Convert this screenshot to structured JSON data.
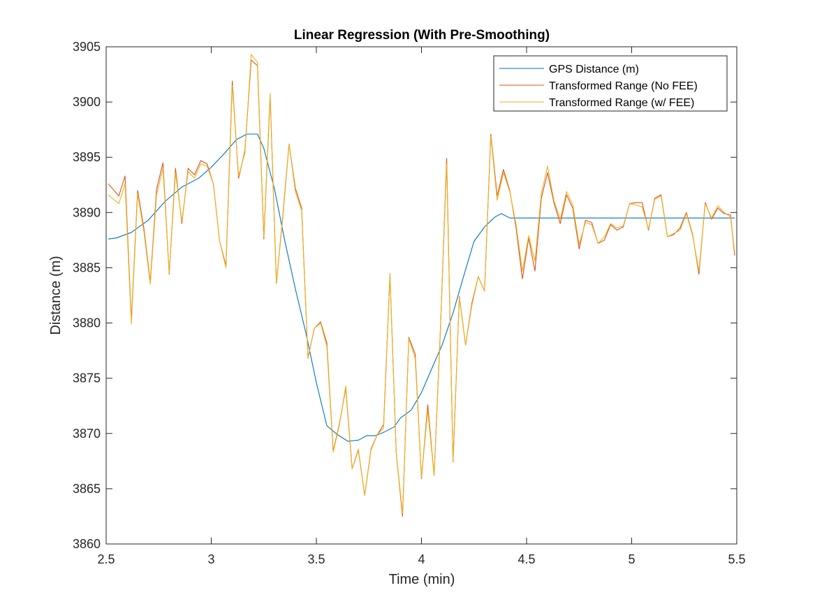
{
  "chart_data": {
    "type": "line",
    "title": "Linear Regression (With Pre-Smoothing)",
    "xlabel": "Time (min)",
    "ylabel": "Distance (m)",
    "xlim": [
      2.5,
      5.5
    ],
    "ylim": [
      3860,
      3905
    ],
    "xticks": [
      2.5,
      3,
      3.5,
      4,
      4.5,
      5,
      5.5
    ],
    "xtick_labels": [
      "2.5",
      "3",
      "3.5",
      "4",
      "4.5",
      "5",
      "5.5"
    ],
    "yticks": [
      3860,
      3865,
      3870,
      3875,
      3880,
      3885,
      3890,
      3895,
      3900,
      3905
    ],
    "ytick_labels": [
      "3860",
      "3865",
      "3870",
      "3875",
      "3880",
      "3885",
      "3890",
      "3895",
      "3900",
      "3905"
    ],
    "grid": false,
    "legend_position": "top-right",
    "series": [
      {
        "name": "GPS Distance (m)",
        "color": "#0072BD",
        "x": [
          2.51,
          2.55,
          2.62,
          2.7,
          2.78,
          2.86,
          2.94,
          3.0,
          3.06,
          3.12,
          3.17,
          3.22,
          3.25,
          3.3,
          3.35,
          3.4,
          3.45,
          3.5,
          3.55,
          3.6,
          3.65,
          3.7,
          3.74,
          3.78,
          3.82,
          3.87,
          3.9,
          3.95,
          4.0,
          4.05,
          4.1,
          4.15,
          4.2,
          4.25,
          4.3,
          4.35,
          4.38,
          4.42,
          4.45,
          4.5,
          5.0,
          5.49
        ],
        "y": [
          3887.6,
          3887.7,
          3888.2,
          3889.3,
          3891.0,
          3892.3,
          3893.1,
          3894.1,
          3895.3,
          3896.6,
          3897.1,
          3897.1,
          3895.8,
          3892.2,
          3887.4,
          3883.1,
          3879.1,
          3874.6,
          3870.7,
          3869.9,
          3869.3,
          3869.4,
          3869.8,
          3869.8,
          3870.1,
          3870.6,
          3871.4,
          3872.1,
          3873.7,
          3875.9,
          3878.1,
          3880.9,
          3884.2,
          3887.4,
          3888.7,
          3889.6,
          3889.9,
          3889.5,
          3889.5,
          3889.5,
          3889.5,
          3889.5
        ]
      },
      {
        "name": "Transformed Range (No FEE)",
        "color": "#D95319",
        "x": [
          2.51,
          2.56,
          2.59,
          2.62,
          2.65,
          2.68,
          2.71,
          2.74,
          2.77,
          2.8,
          2.83,
          2.86,
          2.89,
          2.92,
          2.95,
          2.98,
          3.01,
          3.04,
          3.07,
          3.1,
          3.13,
          3.16,
          3.19,
          3.22,
          3.25,
          3.28,
          3.31,
          3.34,
          3.37,
          3.4,
          3.43,
          3.46,
          3.49,
          3.52,
          3.55,
          3.58,
          3.61,
          3.64,
          3.67,
          3.7,
          3.73,
          3.76,
          3.79,
          3.82,
          3.85,
          3.88,
          3.91,
          3.94,
          3.97,
          4.0,
          4.03,
          4.06,
          4.09,
          4.12,
          4.15,
          4.18,
          4.21,
          4.24,
          4.27,
          4.3,
          4.33,
          4.36,
          4.39,
          4.42,
          4.45,
          4.48,
          4.51,
          4.54,
          4.57,
          4.6,
          4.63,
          4.66,
          4.69,
          4.72,
          4.75,
          4.78,
          4.81,
          4.84,
          4.87,
          4.9,
          4.93,
          4.96,
          4.99,
          5.02,
          5.05,
          5.08,
          5.11,
          5.14,
          5.17,
          5.2,
          5.23,
          5.26,
          5.29,
          5.32,
          5.35,
          5.38,
          5.41,
          5.44,
          5.47,
          5.49
        ],
        "y": [
          3892.6,
          3891.5,
          3893.3,
          3880.2,
          3892.0,
          3888.5,
          3883.7,
          3892.1,
          3894.5,
          3884.4,
          3894.0,
          3889.0,
          3894.0,
          3893.4,
          3894.7,
          3894.4,
          3892.6,
          3887.4,
          3885.2,
          3901.9,
          3893.1,
          3895.6,
          3903.8,
          3903.3,
          3887.6,
          3900.6,
          3883.6,
          3889.6,
          3896.2,
          3892.2,
          3890.4,
          3876.8,
          3879.5,
          3880.1,
          3878.2,
          3868.4,
          3870.9,
          3874.1,
          3866.8,
          3868.5,
          3864.4,
          3868.6,
          3869.9,
          3870.8,
          3884.3,
          3868.2,
          3862.5,
          3878.7,
          3877.2,
          3865.9,
          3872.6,
          3866.2,
          3879.3,
          3894.9,
          3867.4,
          3882.4,
          3878.0,
          3881.8,
          3884.2,
          3882.9,
          3897.1,
          3891.5,
          3893.9,
          3892.0,
          3888.6,
          3884.0,
          3887.7,
          3884.7,
          3891.3,
          3893.6,
          3890.9,
          3889.0,
          3891.6,
          3890.4,
          3886.7,
          3889.3,
          3889.1,
          3887.2,
          3887.5,
          3888.9,
          3888.4,
          3888.7,
          3890.8,
          3890.9,
          3890.9,
          3888.4,
          3891.3,
          3891.6,
          3887.8,
          3888.0,
          3888.6,
          3890.0,
          3888.0,
          3884.4,
          3890.9,
          3889.4,
          3890.4,
          3889.9,
          3889.8,
          3886.1
        ]
      },
      {
        "name": "Transformed Range (w/ FEE)",
        "color": "#EDB120",
        "x": [
          2.51,
          2.56,
          2.59,
          2.62,
          2.65,
          2.68,
          2.71,
          2.74,
          2.77,
          2.8,
          2.83,
          2.86,
          2.89,
          2.92,
          2.95,
          2.98,
          3.01,
          3.04,
          3.07,
          3.1,
          3.13,
          3.16,
          3.19,
          3.22,
          3.25,
          3.28,
          3.31,
          3.34,
          3.37,
          3.4,
          3.43,
          3.46,
          3.49,
          3.52,
          3.55,
          3.58,
          3.61,
          3.64,
          3.67,
          3.7,
          3.73,
          3.76,
          3.79,
          3.82,
          3.85,
          3.88,
          3.91,
          3.94,
          3.97,
          4.0,
          4.03,
          4.06,
          4.09,
          4.12,
          4.15,
          4.18,
          4.21,
          4.24,
          4.27,
          4.3,
          4.33,
          4.36,
          4.39,
          4.42,
          4.45,
          4.48,
          4.51,
          4.54,
          4.57,
          4.6,
          4.63,
          4.66,
          4.69,
          4.72,
          4.75,
          4.78,
          4.81,
          4.84,
          4.87,
          4.9,
          4.93,
          4.96,
          4.99,
          5.02,
          5.05,
          5.08,
          5.11,
          5.14,
          5.17,
          5.2,
          5.23,
          5.26,
          5.29,
          5.32,
          5.35,
          5.38,
          5.41,
          5.44,
          5.47,
          5.49
        ],
        "y": [
          3891.6,
          3890.8,
          3892.6,
          3879.9,
          3891.7,
          3888.2,
          3883.5,
          3891.6,
          3894.0,
          3884.5,
          3893.6,
          3889.2,
          3893.7,
          3893.1,
          3894.4,
          3894.2,
          3892.6,
          3887.4,
          3885.0,
          3901.5,
          3893.3,
          3895.4,
          3904.3,
          3903.6,
          3887.8,
          3900.8,
          3883.7,
          3889.4,
          3896.2,
          3891.9,
          3890.2,
          3876.8,
          3879.5,
          3880.0,
          3877.9,
          3868.3,
          3870.8,
          3874.3,
          3866.8,
          3868.6,
          3864.4,
          3868.5,
          3869.9,
          3870.5,
          3884.5,
          3868.2,
          3862.8,
          3878.6,
          3876.8,
          3866.0,
          3872.1,
          3866.2,
          3879.5,
          3894.4,
          3867.4,
          3882.3,
          3878.0,
          3881.6,
          3884.2,
          3882.9,
          3896.9,
          3891.1,
          3893.6,
          3891.9,
          3888.9,
          3884.7,
          3887.9,
          3885.6,
          3891.7,
          3894.2,
          3891.1,
          3889.4,
          3891.9,
          3890.7,
          3887.1,
          3889.1,
          3888.9,
          3887.2,
          3887.8,
          3889.0,
          3888.6,
          3888.8,
          3890.8,
          3890.7,
          3890.5,
          3888.5,
          3891.2,
          3891.5,
          3887.8,
          3888.1,
          3888.4,
          3889.9,
          3887.9,
          3884.7,
          3890.8,
          3889.5,
          3890.6,
          3890.0,
          3889.6,
          3886.4
        ]
      }
    ]
  }
}
